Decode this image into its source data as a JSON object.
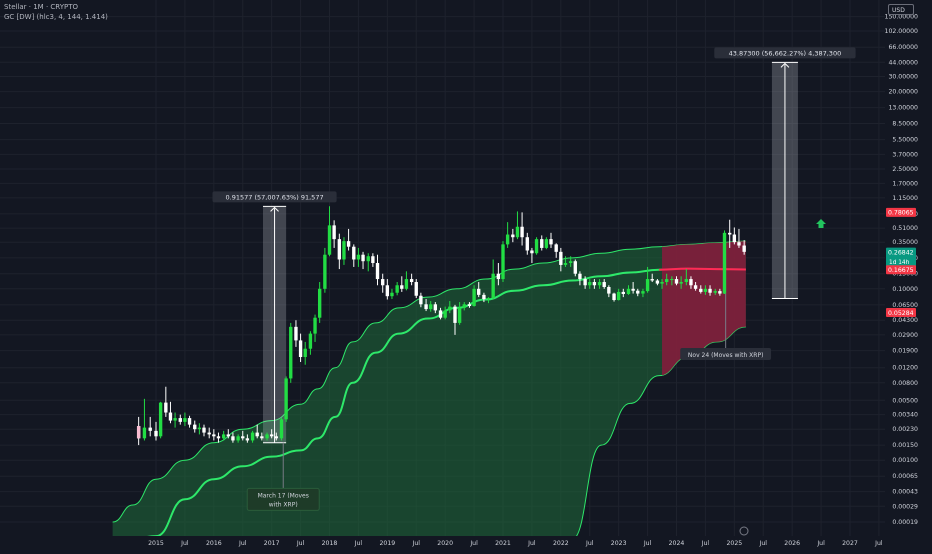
{
  "header": {
    "title": "Stellar · 1M · CRYPTO",
    "indicator": "GC [DW] (hlc3, 4, 144, 1.414)",
    "currency": "USD"
  },
  "colors": {
    "background": "#131722",
    "up": "#22dd44",
    "down": "#ffffff",
    "band_fill": "#1f6b3a",
    "band_edge": "#2ee86a",
    "midline": "#2ee86a",
    "red_zone": "#8a1a3c",
    "red_line": "#ff2a55",
    "label_red": "#f23645",
    "label_green": "#089981",
    "measure": "#4a4e59"
  },
  "chart_data": {
    "type": "candlestick",
    "y_scale": "log",
    "y_ticks": [
      "150.00000",
      "102.00000",
      "66.00000",
      "44.00000",
      "30.00000",
      "20.00000",
      "13.00000",
      "8.50000",
      "5.50000",
      "3.70000",
      "2.50000",
      "1.70000",
      "1.15000",
      "0.75000",
      "0.51000",
      "0.35000",
      "0.23000",
      "0.15000",
      "0.10000",
      "0.06500",
      "0.04300",
      "0.02900",
      "0.01900",
      "0.01200",
      "0.00800",
      "0.00500",
      "0.00340",
      "0.00230",
      "0.00150",
      "0.00100",
      "0.00065",
      "0.00043",
      "0.00029",
      "0.00019"
    ],
    "x_ticks": [
      "2015",
      "Jul",
      "2016",
      "Jul",
      "2017",
      "Jul",
      "2018",
      "Jul",
      "2019",
      "Jul",
      "2020",
      "Jul",
      "2021",
      "Jul",
      "2022",
      "Jul",
      "2023",
      "Jul",
      "2024",
      "Jul",
      "2025",
      "Jul",
      "2026",
      "Jul",
      "2027",
      "Jul"
    ],
    "x_tick_dates": [
      2015.0,
      2015.5,
      2016.0,
      2016.5,
      2017.0,
      2017.5,
      2018.0,
      2018.5,
      2019.0,
      2019.5,
      2020.0,
      2020.5,
      2021.0,
      2021.5,
      2022.0,
      2022.5,
      2023.0,
      2023.5,
      2024.0,
      2024.5,
      2025.0,
      2025.5,
      2026.0,
      2026.5,
      2027.0,
      2027.5
    ],
    "price_labels": [
      {
        "text": "0.78065",
        "value": 0.78065,
        "color": "#f23645"
      },
      {
        "text": "0.26842",
        "value": 0.26842,
        "color": "#089981",
        "sub": "1d 14h"
      },
      {
        "text": "0.16675",
        "value": 0.16675,
        "color": "#f23645"
      },
      {
        "text": "0.05284",
        "value": 0.05284,
        "color": "#f23645"
      }
    ],
    "measure_boxes": [
      {
        "label": "0.91577 (57,007.63%) 91,577",
        "x_start": 2016.85,
        "x_end": 2017.25,
        "y_low": 0.0016,
        "y_high": 0.91577
      },
      {
        "label": "43.87300 (56,662.27%) 4,387,300",
        "x_start": 2025.65,
        "x_end": 2026.1,
        "y_low": 0.077,
        "y_high": 43.873
      }
    ],
    "annotations": [
      {
        "text": "March 17 (Moves with XRP)",
        "x": 2017.2,
        "y_anchor": 0.0013
      },
      {
        "text": "Nov 24 (Moves with XRP)",
        "x": 2024.85,
        "y_anchor": 0.025
      }
    ],
    "band": {
      "x": [
        2014.25,
        2014.6,
        2015.0,
        2015.5,
        2016.0,
        2016.5,
        2017.0,
        2017.5,
        2017.8,
        2018.1,
        2018.4,
        2018.8,
        2019.2,
        2019.7,
        2020.2,
        2020.7,
        2021.2,
        2021.7,
        2022.2,
        2022.7,
        2023.2,
        2023.7,
        2024.2,
        2024.7,
        2025.2
      ],
      "upper": [
        0.00019,
        0.0003,
        0.0006,
        0.001,
        0.0016,
        0.0023,
        0.0029,
        0.0045,
        0.0068,
        0.012,
        0.024,
        0.04,
        0.06,
        0.08,
        0.1,
        0.13,
        0.17,
        0.2,
        0.23,
        0.26,
        0.29,
        0.31,
        0.33,
        0.345,
        0.36
      ],
      "lower": [
        1e-05,
        1e-05,
        1e-05,
        1e-05,
        1e-05,
        1e-05,
        1e-05,
        1e-05,
        1e-05,
        1e-05,
        1e-05,
        1e-05,
        1e-05,
        1e-05,
        1e-05,
        1e-05,
        1.8e-05,
        3e-05,
        9e-05,
        0.0015,
        0.0046,
        0.0097,
        0.016,
        0.024,
        0.036
      ],
      "mid": [
        1e-05,
        5e-05,
        0.00013,
        0.00035,
        0.0006,
        0.00085,
        0.0011,
        0.0013,
        0.0018,
        0.0032,
        0.008,
        0.018,
        0.03,
        0.045,
        0.06,
        0.075,
        0.095,
        0.11,
        0.125,
        0.14,
        0.155,
        0.167,
        0.172,
        0.17,
        0.168
      ]
    },
    "red_zone": {
      "x_start": 2023.75,
      "x_end": 2025.2
    },
    "candles": [
      {
        "t": 2014.7,
        "o": 0.0025,
        "h": 0.0032,
        "l": 0.0015,
        "c": 0.0018
      },
      {
        "t": 2014.8,
        "o": 0.0018,
        "h": 0.0052,
        "l": 0.0017,
        "c": 0.0024
      },
      {
        "t": 2014.9,
        "o": 0.0024,
        "h": 0.0032,
        "l": 0.0019,
        "c": 0.0022
      },
      {
        "t": 2015.0,
        "o": 0.0022,
        "h": 0.0028,
        "l": 0.0017,
        "c": 0.0019
      },
      {
        "t": 2015.08,
        "o": 0.0019,
        "h": 0.0048,
        "l": 0.0018,
        "c": 0.0047
      },
      {
        "t": 2015.17,
        "o": 0.0047,
        "h": 0.0072,
        "l": 0.0032,
        "c": 0.0036
      },
      {
        "t": 2015.25,
        "o": 0.0036,
        "h": 0.0048,
        "l": 0.0027,
        "c": 0.0029
      },
      {
        "t": 2015.33,
        "o": 0.0029,
        "h": 0.0036,
        "l": 0.0024,
        "c": 0.0031
      },
      {
        "t": 2015.42,
        "o": 0.0031,
        "h": 0.0034,
        "l": 0.0026,
        "c": 0.0028
      },
      {
        "t": 2015.5,
        "o": 0.0028,
        "h": 0.0036,
        "l": 0.0025,
        "c": 0.0031
      },
      {
        "t": 2015.58,
        "o": 0.0031,
        "h": 0.0033,
        "l": 0.0024,
        "c": 0.0026
      },
      {
        "t": 2015.67,
        "o": 0.0026,
        "h": 0.0029,
        "l": 0.0021,
        "c": 0.0023
      },
      {
        "t": 2015.75,
        "o": 0.0023,
        "h": 0.0027,
        "l": 0.002,
        "c": 0.0024
      },
      {
        "t": 2015.83,
        "o": 0.0024,
        "h": 0.0026,
        "l": 0.0019,
        "c": 0.0021
      },
      {
        "t": 2015.92,
        "o": 0.0021,
        "h": 0.0024,
        "l": 0.0018,
        "c": 0.002
      },
      {
        "t": 2016.0,
        "o": 0.002,
        "h": 0.0023,
        "l": 0.0017,
        "c": 0.0019
      },
      {
        "t": 2016.08,
        "o": 0.0019,
        "h": 0.0021,
        "l": 0.0016,
        "c": 0.0018
      },
      {
        "t": 2016.17,
        "o": 0.0018,
        "h": 0.0022,
        "l": 0.0017,
        "c": 0.002
      },
      {
        "t": 2016.25,
        "o": 0.002,
        "h": 0.0023,
        "l": 0.0018,
        "c": 0.0019
      },
      {
        "t": 2016.33,
        "o": 0.0019,
        "h": 0.0021,
        "l": 0.0016,
        "c": 0.0017
      },
      {
        "t": 2016.42,
        "o": 0.0017,
        "h": 0.002,
        "l": 0.0016,
        "c": 0.0019
      },
      {
        "t": 2016.5,
        "o": 0.0019,
        "h": 0.0022,
        "l": 0.0017,
        "c": 0.0018
      },
      {
        "t": 2016.58,
        "o": 0.0018,
        "h": 0.002,
        "l": 0.0016,
        "c": 0.0017
      },
      {
        "t": 2016.67,
        "o": 0.0017,
        "h": 0.0022,
        "l": 0.0016,
        "c": 0.0021
      },
      {
        "t": 2016.75,
        "o": 0.0021,
        "h": 0.0026,
        "l": 0.0018,
        "c": 0.0019
      },
      {
        "t": 2016.83,
        "o": 0.0019,
        "h": 0.0021,
        "l": 0.0017,
        "c": 0.0018
      },
      {
        "t": 2016.92,
        "o": 0.0018,
        "h": 0.0021,
        "l": 0.0017,
        "c": 0.002
      },
      {
        "t": 2017.0,
        "o": 0.002,
        "h": 0.0023,
        "l": 0.0018,
        "c": 0.0019
      },
      {
        "t": 2017.08,
        "o": 0.0019,
        "h": 0.0021,
        "l": 0.0017,
        "c": 0.0018
      },
      {
        "t": 2017.17,
        "o": 0.0018,
        "h": 0.0031,
        "l": 0.0017,
        "c": 0.003
      },
      {
        "t": 2017.25,
        "o": 0.003,
        "h": 0.0095,
        "l": 0.0028,
        "c": 0.009
      },
      {
        "t": 2017.33,
        "o": 0.009,
        "h": 0.04,
        "l": 0.008,
        "c": 0.036
      },
      {
        "t": 2017.42,
        "o": 0.036,
        "h": 0.043,
        "l": 0.021,
        "c": 0.025
      },
      {
        "t": 2017.5,
        "o": 0.025,
        "h": 0.03,
        "l": 0.014,
        "c": 0.016
      },
      {
        "t": 2017.58,
        "o": 0.016,
        "h": 0.024,
        "l": 0.013,
        "c": 0.02
      },
      {
        "t": 2017.67,
        "o": 0.02,
        "h": 0.032,
        "l": 0.017,
        "c": 0.03
      },
      {
        "t": 2017.75,
        "o": 0.03,
        "h": 0.05,
        "l": 0.024,
        "c": 0.046
      },
      {
        "t": 2017.83,
        "o": 0.046,
        "h": 0.12,
        "l": 0.04,
        "c": 0.1
      },
      {
        "t": 2017.92,
        "o": 0.1,
        "h": 0.3,
        "l": 0.09,
        "c": 0.25
      },
      {
        "t": 2018.0,
        "o": 0.25,
        "h": 0.92,
        "l": 0.24,
        "c": 0.55
      },
      {
        "t": 2018.08,
        "o": 0.55,
        "h": 0.63,
        "l": 0.3,
        "c": 0.38
      },
      {
        "t": 2018.17,
        "o": 0.38,
        "h": 0.44,
        "l": 0.17,
        "c": 0.22
      },
      {
        "t": 2018.25,
        "o": 0.22,
        "h": 0.4,
        "l": 0.19,
        "c": 0.36
      },
      {
        "t": 2018.33,
        "o": 0.36,
        "h": 0.5,
        "l": 0.28,
        "c": 0.31
      },
      {
        "t": 2018.42,
        "o": 0.31,
        "h": 0.33,
        "l": 0.18,
        "c": 0.22
      },
      {
        "t": 2018.5,
        "o": 0.22,
        "h": 0.3,
        "l": 0.18,
        "c": 0.25
      },
      {
        "t": 2018.58,
        "o": 0.25,
        "h": 0.27,
        "l": 0.17,
        "c": 0.21
      },
      {
        "t": 2018.67,
        "o": 0.21,
        "h": 0.26,
        "l": 0.16,
        "c": 0.24
      },
      {
        "t": 2018.75,
        "o": 0.24,
        "h": 0.26,
        "l": 0.18,
        "c": 0.2
      },
      {
        "t": 2018.83,
        "o": 0.2,
        "h": 0.25,
        "l": 0.11,
        "c": 0.13
      },
      {
        "t": 2018.92,
        "o": 0.13,
        "h": 0.15,
        "l": 0.09,
        "c": 0.11
      },
      {
        "t": 2019.0,
        "o": 0.11,
        "h": 0.13,
        "l": 0.075,
        "c": 0.082
      },
      {
        "t": 2019.08,
        "o": 0.082,
        "h": 0.1,
        "l": 0.076,
        "c": 0.09
      },
      {
        "t": 2019.17,
        "o": 0.09,
        "h": 0.12,
        "l": 0.084,
        "c": 0.11
      },
      {
        "t": 2019.25,
        "o": 0.11,
        "h": 0.14,
        "l": 0.092,
        "c": 0.1
      },
      {
        "t": 2019.33,
        "o": 0.1,
        "h": 0.16,
        "l": 0.096,
        "c": 0.13
      },
      {
        "t": 2019.42,
        "o": 0.13,
        "h": 0.15,
        "l": 0.11,
        "c": 0.12
      },
      {
        "t": 2019.5,
        "o": 0.12,
        "h": 0.13,
        "l": 0.078,
        "c": 0.083
      },
      {
        "t": 2019.58,
        "o": 0.083,
        "h": 0.09,
        "l": 0.061,
        "c": 0.066
      },
      {
        "t": 2019.67,
        "o": 0.066,
        "h": 0.076,
        "l": 0.055,
        "c": 0.058
      },
      {
        "t": 2019.75,
        "o": 0.058,
        "h": 0.072,
        "l": 0.054,
        "c": 0.066
      },
      {
        "t": 2019.83,
        "o": 0.066,
        "h": 0.07,
        "l": 0.052,
        "c": 0.056
      },
      {
        "t": 2019.92,
        "o": 0.056,
        "h": 0.06,
        "l": 0.044,
        "c": 0.046
      },
      {
        "t": 2020.0,
        "o": 0.046,
        "h": 0.062,
        "l": 0.044,
        "c": 0.056
      },
      {
        "t": 2020.08,
        "o": 0.056,
        "h": 0.072,
        "l": 0.052,
        "c": 0.062
      },
      {
        "t": 2020.17,
        "o": 0.062,
        "h": 0.065,
        "l": 0.029,
        "c": 0.04
      },
      {
        "t": 2020.25,
        "o": 0.04,
        "h": 0.07,
        "l": 0.038,
        "c": 0.06
      },
      {
        "t": 2020.33,
        "o": 0.06,
        "h": 0.07,
        "l": 0.056,
        "c": 0.066
      },
      {
        "t": 2020.42,
        "o": 0.066,
        "h": 0.07,
        "l": 0.06,
        "c": 0.063
      },
      {
        "t": 2020.5,
        "o": 0.063,
        "h": 0.11,
        "l": 0.062,
        "c": 0.1
      },
      {
        "t": 2020.58,
        "o": 0.1,
        "h": 0.12,
        "l": 0.08,
        "c": 0.085
      },
      {
        "t": 2020.67,
        "o": 0.085,
        "h": 0.09,
        "l": 0.07,
        "c": 0.076
      },
      {
        "t": 2020.75,
        "o": 0.076,
        "h": 0.08,
        "l": 0.068,
        "c": 0.078
      },
      {
        "t": 2020.83,
        "o": 0.078,
        "h": 0.22,
        "l": 0.076,
        "c": 0.15
      },
      {
        "t": 2020.92,
        "o": 0.15,
        "h": 0.2,
        "l": 0.11,
        "c": 0.13
      },
      {
        "t": 2021.0,
        "o": 0.13,
        "h": 0.36,
        "l": 0.12,
        "c": 0.33
      },
      {
        "t": 2021.08,
        "o": 0.33,
        "h": 0.6,
        "l": 0.3,
        "c": 0.43
      },
      {
        "t": 2021.17,
        "o": 0.43,
        "h": 0.5,
        "l": 0.35,
        "c": 0.4
      },
      {
        "t": 2021.25,
        "o": 0.4,
        "h": 0.8,
        "l": 0.38,
        "c": 0.53
      },
      {
        "t": 2021.33,
        "o": 0.53,
        "h": 0.78,
        "l": 0.32,
        "c": 0.4
      },
      {
        "t": 2021.42,
        "o": 0.4,
        "h": 0.45,
        "l": 0.25,
        "c": 0.28
      },
      {
        "t": 2021.5,
        "o": 0.28,
        "h": 0.3,
        "l": 0.2,
        "c": 0.26
      },
      {
        "t": 2021.58,
        "o": 0.26,
        "h": 0.4,
        "l": 0.25,
        "c": 0.38
      },
      {
        "t": 2021.67,
        "o": 0.38,
        "h": 0.42,
        "l": 0.28,
        "c": 0.3
      },
      {
        "t": 2021.75,
        "o": 0.3,
        "h": 0.4,
        "l": 0.29,
        "c": 0.38
      },
      {
        "t": 2021.83,
        "o": 0.38,
        "h": 0.45,
        "l": 0.3,
        "c": 0.33
      },
      {
        "t": 2021.92,
        "o": 0.33,
        "h": 0.34,
        "l": 0.23,
        "c": 0.27
      },
      {
        "t": 2022.0,
        "o": 0.27,
        "h": 0.3,
        "l": 0.16,
        "c": 0.19
      },
      {
        "t": 2022.08,
        "o": 0.19,
        "h": 0.24,
        "l": 0.18,
        "c": 0.2
      },
      {
        "t": 2022.17,
        "o": 0.2,
        "h": 0.24,
        "l": 0.18,
        "c": 0.21
      },
      {
        "t": 2022.25,
        "o": 0.21,
        "h": 0.22,
        "l": 0.14,
        "c": 0.15
      },
      {
        "t": 2022.33,
        "o": 0.15,
        "h": 0.16,
        "l": 0.11,
        "c": 0.13
      },
      {
        "t": 2022.42,
        "o": 0.13,
        "h": 0.14,
        "l": 0.1,
        "c": 0.11
      },
      {
        "t": 2022.5,
        "o": 0.11,
        "h": 0.13,
        "l": 0.1,
        "c": 0.12
      },
      {
        "t": 2022.58,
        "o": 0.12,
        "h": 0.13,
        "l": 0.1,
        "c": 0.11
      },
      {
        "t": 2022.67,
        "o": 0.11,
        "h": 0.13,
        "l": 0.1,
        "c": 0.12
      },
      {
        "t": 2022.75,
        "o": 0.12,
        "h": 0.13,
        "l": 0.1,
        "c": 0.105
      },
      {
        "t": 2022.83,
        "o": 0.105,
        "h": 0.11,
        "l": 0.08,
        "c": 0.088
      },
      {
        "t": 2022.92,
        "o": 0.088,
        "h": 0.09,
        "l": 0.071,
        "c": 0.074
      },
      {
        "t": 2023.0,
        "o": 0.074,
        "h": 0.1,
        "l": 0.073,
        "c": 0.092
      },
      {
        "t": 2023.08,
        "o": 0.092,
        "h": 0.1,
        "l": 0.08,
        "c": 0.087
      },
      {
        "t": 2023.17,
        "o": 0.087,
        "h": 0.11,
        "l": 0.085,
        "c": 0.1
      },
      {
        "t": 2023.25,
        "o": 0.1,
        "h": 0.12,
        "l": 0.088,
        "c": 0.095
      },
      {
        "t": 2023.33,
        "o": 0.095,
        "h": 0.1,
        "l": 0.082,
        "c": 0.088
      },
      {
        "t": 2023.42,
        "o": 0.088,
        "h": 0.1,
        "l": 0.08,
        "c": 0.094
      },
      {
        "t": 2023.5,
        "o": 0.094,
        "h": 0.18,
        "l": 0.09,
        "c": 0.13
      },
      {
        "t": 2023.58,
        "o": 0.13,
        "h": 0.15,
        "l": 0.12,
        "c": 0.125
      },
      {
        "t": 2023.67,
        "o": 0.125,
        "h": 0.13,
        "l": 0.11,
        "c": 0.115
      },
      {
        "t": 2023.75,
        "o": 0.115,
        "h": 0.13,
        "l": 0.1,
        "c": 0.12
      },
      {
        "t": 2023.83,
        "o": 0.12,
        "h": 0.15,
        "l": 0.11,
        "c": 0.13
      },
      {
        "t": 2023.92,
        "o": 0.13,
        "h": 0.14,
        "l": 0.11,
        "c": 0.13
      },
      {
        "t": 2024.0,
        "o": 0.13,
        "h": 0.14,
        "l": 0.11,
        "c": 0.115
      },
      {
        "t": 2024.08,
        "o": 0.115,
        "h": 0.14,
        "l": 0.1,
        "c": 0.12
      },
      {
        "t": 2024.17,
        "o": 0.12,
        "h": 0.17,
        "l": 0.11,
        "c": 0.13
      },
      {
        "t": 2024.25,
        "o": 0.13,
        "h": 0.14,
        "l": 0.1,
        "c": 0.11
      },
      {
        "t": 2024.33,
        "o": 0.11,
        "h": 0.12,
        "l": 0.095,
        "c": 0.1
      },
      {
        "t": 2024.42,
        "o": 0.1,
        "h": 0.11,
        "l": 0.088,
        "c": 0.092
      },
      {
        "t": 2024.5,
        "o": 0.092,
        "h": 0.11,
        "l": 0.085,
        "c": 0.1
      },
      {
        "t": 2024.58,
        "o": 0.1,
        "h": 0.11,
        "l": 0.083,
        "c": 0.09
      },
      {
        "t": 2024.67,
        "o": 0.09,
        "h": 0.1,
        "l": 0.085,
        "c": 0.094
      },
      {
        "t": 2024.75,
        "o": 0.094,
        "h": 0.1,
        "l": 0.083,
        "c": 0.088
      },
      {
        "t": 2024.83,
        "o": 0.088,
        "h": 0.48,
        "l": 0.087,
        "c": 0.45
      },
      {
        "t": 2024.92,
        "o": 0.45,
        "h": 0.64,
        "l": 0.3,
        "c": 0.43
      },
      {
        "t": 2025.0,
        "o": 0.43,
        "h": 0.52,
        "l": 0.33,
        "c": 0.35
      },
      {
        "t": 2025.08,
        "o": 0.35,
        "h": 0.5,
        "l": 0.3,
        "c": 0.32
      },
      {
        "t": 2025.17,
        "o": 0.32,
        "h": 0.37,
        "l": 0.25,
        "c": 0.27
      }
    ],
    "title": "",
    "xlabel": "",
    "ylabel": ""
  }
}
